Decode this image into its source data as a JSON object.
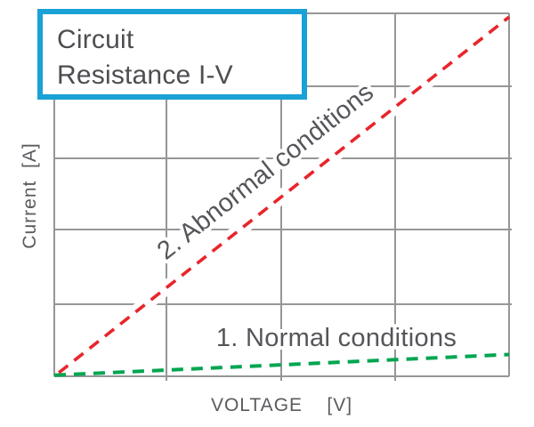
{
  "chart_data": {
    "type": "line",
    "title": "Circuit Resistance I-V",
    "xlabel": "VOLTAGE [V]",
    "ylabel": "Current [A]",
    "xlabel_display": "VOLTAGE    [V]",
    "ylabel_display": "Current  [A]",
    "x_range": [
      0,
      100
    ],
    "y_range": [
      0,
      100
    ],
    "axis_tick_labels": "none",
    "grid": {
      "visible": true,
      "columns": 4,
      "rows": 5,
      "color": "#969696"
    },
    "legend_position": "inline-labels",
    "series": [
      {
        "label": "1. Normal conditions",
        "color": "#00a550",
        "line_style": "dashed",
        "x": [
          0,
          100
        ],
        "y": [
          0.3,
          6
        ]
      },
      {
        "label": "2. Abnormal conditions",
        "color": "#e8252b",
        "line_style": "dashed",
        "x": [
          1,
          100
        ],
        "y": [
          1,
          99
        ]
      }
    ]
  },
  "title_box": {
    "line1": "Circuit",
    "line2": "Resistance I-V",
    "border_color": "#1aa1d6"
  },
  "colors": {
    "background": "#ffffff",
    "grid": "#969696",
    "text_gray": "#55565a",
    "accent_cyan": "#1aa1d6",
    "series_red": "#e8252b",
    "series_green": "#00a550"
  }
}
